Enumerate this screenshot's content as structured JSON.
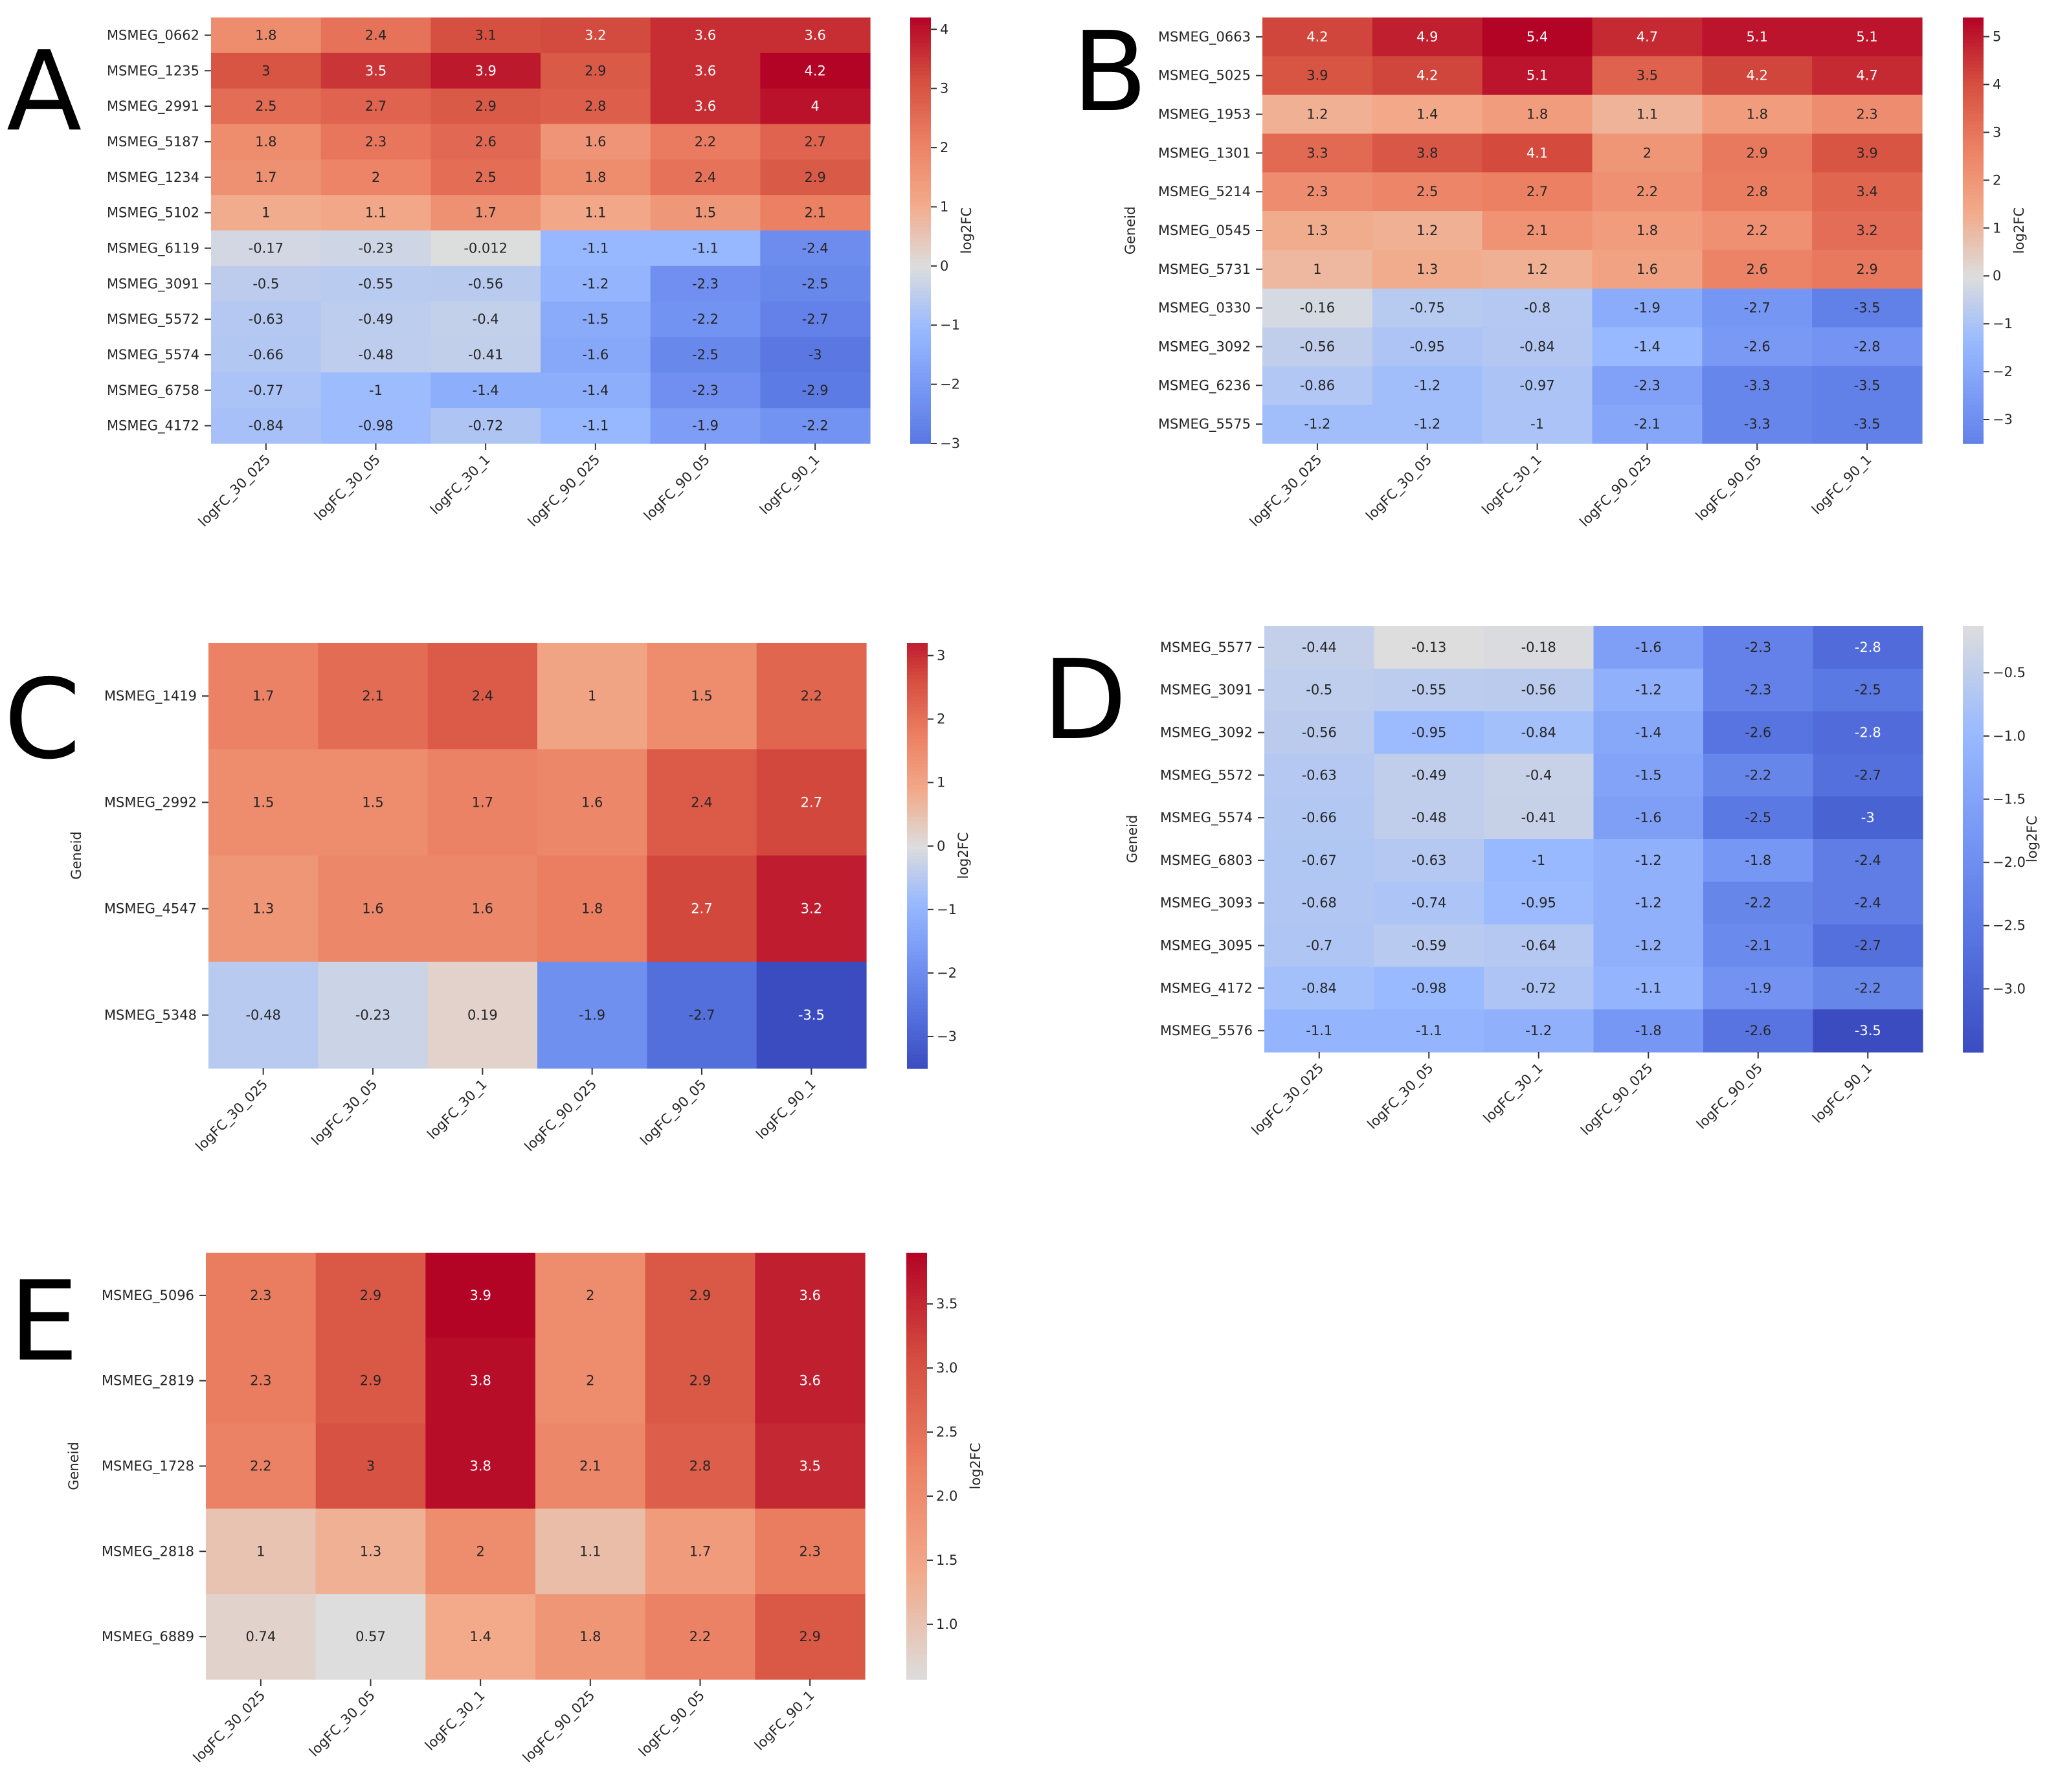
{
  "chart_data": [
    {
      "id": "A",
      "type": "heatmap",
      "panel_label": "A",
      "ylabel": "",
      "cbar_label": "log2FC",
      "xlabels": [
        "logFC_30_025",
        "logFC_30_05",
        "logFC_30_1",
        "logFC_90_025",
        "logFC_90_05",
        "logFC_90_1"
      ],
      "rows": [
        "MSMEG_0662",
        "MSMEG_1235",
        "MSMEG_2991",
        "MSMEG_5187",
        "MSMEG_1234",
        "MSMEG_5102",
        "MSMEG_6119",
        "MSMEG_3091",
        "MSMEG_5572",
        "MSMEG_5574",
        "MSMEG_6758",
        "MSMEG_4172"
      ],
      "values": [
        [
          1.8,
          2.4,
          3.1,
          3.2,
          3.6,
          3.6
        ],
        [
          3,
          3.5,
          3.9,
          2.9,
          3.6,
          4.2
        ],
        [
          2.5,
          2.7,
          2.9,
          2.8,
          3.6,
          4
        ],
        [
          1.8,
          2.3,
          2.6,
          1.6,
          2.2,
          2.7
        ],
        [
          1.7,
          2,
          2.5,
          1.8,
          2.4,
          2.9
        ],
        [
          1,
          1.1,
          1.7,
          1.1,
          1.5,
          2.1
        ],
        [
          -0.17,
          -0.23,
          -0.012,
          -1.1,
          -1.1,
          -2.4
        ],
        [
          -0.5,
          -0.55,
          -0.56,
          -1.2,
          -2.3,
          -2.5
        ],
        [
          -0.63,
          -0.49,
          -0.4,
          -1.5,
          -2.2,
          -2.7
        ],
        [
          -0.66,
          -0.48,
          -0.41,
          -1.6,
          -2.5,
          -3
        ],
        [
          -0.77,
          -1,
          -1.4,
          -1.4,
          -2.3,
          -2.9
        ],
        [
          -0.84,
          -0.98,
          -0.72,
          -1.1,
          -1.9,
          -2.2
        ]
      ],
      "vmin": -3.0,
      "vmax": 4.2,
      "center": 0,
      "colormap": "coolwarm",
      "cbar_ticks": [
        -3,
        -2,
        -1,
        0,
        1,
        2,
        3,
        4
      ],
      "cbar_ticklabels": [
        "−3",
        "−2",
        "−1",
        "0",
        "1",
        "2",
        "3",
        "4"
      ]
    },
    {
      "id": "B",
      "type": "heatmap",
      "panel_label": "B",
      "ylabel": "Geneid",
      "cbar_label": "log2FC",
      "xlabels": [
        "logFC_30_025",
        "logFC_30_05",
        "logFC_30_1",
        "logFC_90_025",
        "logFC_90_05",
        "logFC_90_1"
      ],
      "rows": [
        "MSMEG_0663",
        "MSMEG_5025",
        "MSMEG_1953",
        "MSMEG_1301",
        "MSMEG_5214",
        "MSMEG_0545",
        "MSMEG_5731",
        "MSMEG_0330",
        "MSMEG_3092",
        "MSMEG_6236",
        "MSMEG_5575"
      ],
      "values": [
        [
          4.2,
          4.9,
          5.4,
          4.7,
          5.1,
          5.1
        ],
        [
          3.9,
          4.2,
          5.1,
          3.5,
          4.2,
          4.7
        ],
        [
          1.2,
          1.4,
          1.8,
          1.1,
          1.8,
          2.3
        ],
        [
          3.3,
          3.8,
          4.1,
          2,
          2.9,
          3.9
        ],
        [
          2.3,
          2.5,
          2.7,
          2.2,
          2.8,
          3.4
        ],
        [
          1.3,
          1.2,
          2.1,
          1.8,
          2.2,
          3.2
        ],
        [
          1,
          1.3,
          1.2,
          1.6,
          2.6,
          2.9
        ],
        [
          -0.16,
          -0.75,
          -0.8,
          -1.9,
          -2.7,
          -3.5
        ],
        [
          -0.56,
          -0.95,
          -0.84,
          -1.4,
          -2.6,
          -2.8
        ],
        [
          -0.86,
          -1.2,
          -0.97,
          -2.3,
          -3.3,
          -3.5
        ],
        [
          -1.2,
          -1.2,
          -1,
          -2.1,
          -3.3,
          -3.5
        ]
      ],
      "vmin": -3.5,
      "vmax": 5.4,
      "center": 0,
      "colormap": "coolwarm",
      "cbar_ticks": [
        -3,
        -2,
        -1,
        0,
        1,
        2,
        3,
        4,
        5
      ],
      "cbar_ticklabels": [
        "−3",
        "−2",
        "−1",
        "0",
        "1",
        "2",
        "3",
        "4",
        "5"
      ]
    },
    {
      "id": "C",
      "type": "heatmap",
      "panel_label": "C",
      "ylabel": "Geneid",
      "cbar_label": "log2FC",
      "xlabels": [
        "logFC_30_025",
        "logFC_30_05",
        "logFC_30_1",
        "logFC_90_025",
        "logFC_90_05",
        "logFC_90_1"
      ],
      "rows": [
        "MSMEG_1419",
        "MSMEG_2992",
        "MSMEG_4547",
        "MSMEG_5348"
      ],
      "values": [
        [
          1.7,
          2.1,
          2.4,
          1,
          1.5,
          2.2
        ],
        [
          1.5,
          1.5,
          1.7,
          1.6,
          2.4,
          2.7
        ],
        [
          1.3,
          1.6,
          1.6,
          1.8,
          2.7,
          3.2
        ],
        [
          -0.48,
          -0.23,
          0.19,
          -1.9,
          -2.7,
          -3.5
        ]
      ],
      "vmin": -3.5,
      "vmax": 3.2,
      "center": 0,
      "colormap": "coolwarm",
      "cbar_ticks": [
        -3,
        -2,
        -1,
        0,
        1,
        2,
        3
      ],
      "cbar_ticklabels": [
        "−3",
        "−2",
        "−1",
        "0",
        "1",
        "2",
        "3"
      ]
    },
    {
      "id": "D",
      "type": "heatmap",
      "panel_label": "D",
      "ylabel": "Geneid",
      "cbar_label": "log2FC",
      "xlabels": [
        "logFC_30_025",
        "logFC_30_05",
        "logFC_30_1",
        "logFC_90_025",
        "logFC_90_05",
        "logFC_90_1"
      ],
      "rows": [
        "MSMEG_5577",
        "MSMEG_3091",
        "MSMEG_3092",
        "MSMEG_5572",
        "MSMEG_5574",
        "MSMEG_6803",
        "MSMEG_3093",
        "MSMEG_3095",
        "MSMEG_4172",
        "MSMEG_5576"
      ],
      "values": [
        [
          -0.44,
          -0.13,
          -0.18,
          -1.6,
          -2.3,
          -2.8
        ],
        [
          -0.5,
          -0.55,
          -0.56,
          -1.2,
          -2.3,
          -2.5
        ],
        [
          -0.56,
          -0.95,
          -0.84,
          -1.4,
          -2.6,
          -2.8
        ],
        [
          -0.63,
          -0.49,
          -0.4,
          -1.5,
          -2.2,
          -2.7
        ],
        [
          -0.66,
          -0.48,
          -0.41,
          -1.6,
          -2.5,
          -3
        ],
        [
          -0.67,
          -0.63,
          -1,
          -1.2,
          -1.8,
          -2.4
        ],
        [
          -0.68,
          -0.74,
          -0.95,
          -1.2,
          -2.2,
          -2.4
        ],
        [
          -0.7,
          -0.59,
          -0.64,
          -1.2,
          -2.1,
          -2.7
        ],
        [
          -0.84,
          -0.98,
          -0.72,
          -1.1,
          -1.9,
          -2.2
        ],
        [
          -1.1,
          -1.1,
          -1.2,
          -1.8,
          -2.6,
          -3.5
        ]
      ],
      "vmin": -3.5,
      "vmax": -0.13,
      "colormap": "coolwarm-lower-half",
      "cbar_ticks": [
        -0.5,
        -1.0,
        -1.5,
        -2.0,
        -2.5,
        -3.0
      ],
      "cbar_ticklabels": [
        "−0.5",
        "−1.0",
        "−1.5",
        "−2.0",
        "−2.5",
        "−3.0"
      ]
    },
    {
      "id": "E",
      "type": "heatmap",
      "panel_label": "E",
      "ylabel": "Geneid",
      "cbar_label": "log2FC",
      "xlabels": [
        "logFC_30_025",
        "logFC_30_05",
        "logFC_30_1",
        "logFC_90_025",
        "logFC_90_05",
        "logFC_90_1"
      ],
      "rows": [
        "MSMEG_5096",
        "MSMEG_2819",
        "MSMEG_1728",
        "MSMEG_2818",
        "MSMEG_6889"
      ],
      "values": [
        [
          2.3,
          2.9,
          3.9,
          2,
          2.9,
          3.6
        ],
        [
          2.3,
          2.9,
          3.8,
          2,
          2.9,
          3.6
        ],
        [
          2.2,
          3,
          3.8,
          2.1,
          2.8,
          3.5
        ],
        [
          1,
          1.3,
          2,
          1.1,
          1.7,
          2.3
        ],
        [
          0.74,
          0.57,
          1.4,
          1.8,
          2.2,
          2.9
        ]
      ],
      "vmin": 0.57,
      "vmax": 3.9,
      "colormap": "coolwarm-upper-half",
      "cbar_ticks": [
        1.0,
        1.5,
        2.0,
        2.5,
        3.0,
        3.5
      ],
      "cbar_ticklabels": [
        "1.0",
        "1.5",
        "2.0",
        "2.5",
        "3.0",
        "3.5"
      ]
    }
  ]
}
